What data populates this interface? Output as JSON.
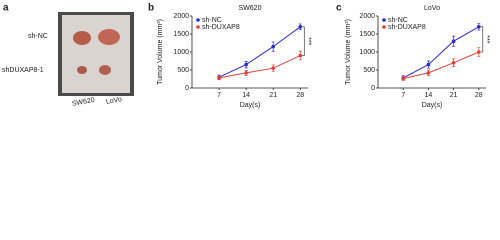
{
  "figure": {
    "panel_label": "a",
    "photo": {
      "row_labels": [
        "sh-NC",
        "shDUXAP8-1"
      ],
      "column_labels": [
        "SW620",
        "LoVo"
      ]
    }
  },
  "chart_data": [
    {
      "type": "line",
      "panel_label": "b",
      "title": "SW620",
      "x_label": "Day(s)",
      "y_label": "Tumor Volume (mm³)",
      "x": [
        7,
        14,
        21,
        28
      ],
      "xlim": [
        0,
        30
      ],
      "xticks": [
        7,
        14,
        21,
        28
      ],
      "ylim": [
        0,
        2000
      ],
      "yticks": [
        0,
        500,
        1000,
        1500,
        2000
      ],
      "legend": "upper left",
      "annotation": "***",
      "series": [
        {
          "name": "sh-NC",
          "color": "#2b2bd6",
          "values": [
            300,
            650,
            1150,
            1700
          ],
          "errors": [
            60,
            90,
            130,
            80
          ]
        },
        {
          "name": "sh-DUXAP8",
          "color": "#e0403a",
          "values": [
            280,
            420,
            550,
            900
          ],
          "errors": [
            50,
            70,
            90,
            120
          ]
        }
      ]
    },
    {
      "type": "line",
      "panel_label": "c",
      "title": "LoVo",
      "x_label": "Day(s)",
      "y_label": "Tumor Volume (mm³)",
      "x": [
        7,
        14,
        21,
        28
      ],
      "xlim": [
        0,
        30
      ],
      "xticks": [
        7,
        14,
        21,
        28
      ],
      "ylim": [
        0,
        2000
      ],
      "yticks": [
        0,
        500,
        1000,
        1500,
        2000
      ],
      "legend": "upper left",
      "annotation": "***",
      "series": [
        {
          "name": "sh-NC",
          "color": "#2b2bd6",
          "values": [
            280,
            650,
            1300,
            1700
          ],
          "errors": [
            60,
            100,
            140,
            90
          ]
        },
        {
          "name": "sh-DUXAP8",
          "color": "#e0403a",
          "values": [
            260,
            420,
            700,
            1000
          ],
          "errors": [
            50,
            80,
            110,
            120
          ]
        }
      ]
    }
  ]
}
